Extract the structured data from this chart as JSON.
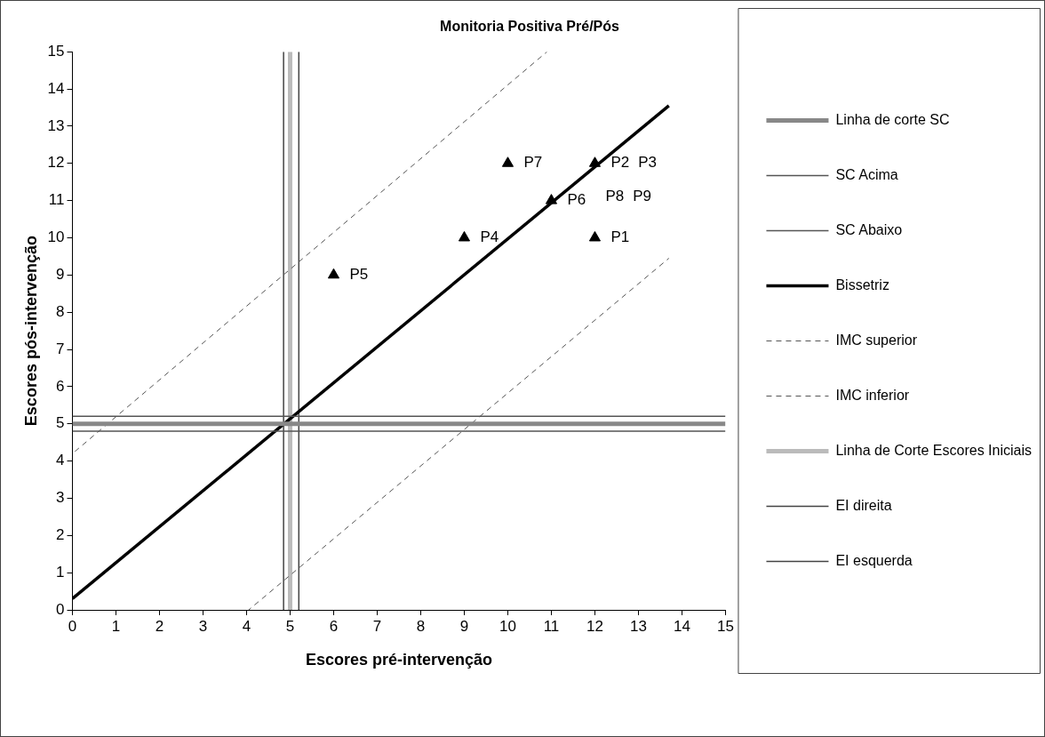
{
  "chart_data": {
    "type": "scatter",
    "title": "Monitoria Positiva Pré/Pós",
    "xlabel": "Escores pré-intervenção",
    "ylabel": "Escores pós-intervenção",
    "xlim": [
      0,
      15
    ],
    "ylim": [
      0,
      15
    ],
    "xticks": [
      0,
      1,
      2,
      3,
      4,
      5,
      6,
      7,
      8,
      9,
      10,
      11,
      12,
      13,
      14,
      15
    ],
    "yticks": [
      0,
      1,
      2,
      3,
      4,
      5,
      6,
      7,
      8,
      9,
      10,
      11,
      12,
      13,
      14,
      15
    ],
    "grid": false,
    "legend": "right",
    "series": [
      {
        "name": "Linha de corte SC",
        "type": "line",
        "color": "#888888",
        "x": [
          0,
          15
        ],
        "values": [
          5,
          5
        ]
      },
      {
        "name": "SC Acima",
        "type": "line",
        "color": "#555555",
        "x": [
          0,
          15
        ],
        "values": [
          5.2,
          5.2
        ]
      },
      {
        "name": "SC Abaixo",
        "type": "line",
        "color": "#555555",
        "x": [
          0,
          15
        ],
        "values": [
          4.8,
          4.8
        ]
      },
      {
        "name": "Bissetriz",
        "type": "line",
        "color": "#000000",
        "x": [
          0,
          13.7
        ],
        "values": [
          0.3,
          13.55
        ]
      },
      {
        "name": "IMC superior",
        "type": "line",
        "color": "#555555",
        "line_style": "dashed",
        "x": [
          0,
          10.9
        ],
        "values": [
          4.2,
          15
        ]
      },
      {
        "name": "IMC inferior",
        "type": "line",
        "color": "#555555",
        "line_style": "dashed",
        "x": [
          4.05,
          13.7
        ],
        "values": [
          0,
          9.45
        ]
      },
      {
        "name": "Linha de Corte Escores Iniciais",
        "type": "line",
        "color": "#bbbbbb",
        "x": [
          5,
          5
        ],
        "values": [
          0,
          15
        ]
      },
      {
        "name": "EI direita",
        "type": "line",
        "color": "#444444",
        "x": [
          5.2,
          5.2
        ],
        "values": [
          0,
          15
        ]
      },
      {
        "name": "EI esquerda",
        "type": "line",
        "color": "#444444",
        "x": [
          4.85,
          4.85
        ],
        "values": [
          0,
          15
        ]
      },
      {
        "type": "scatter",
        "marker": "triangle",
        "color": "#000000",
        "x": [
          12,
          12,
          9,
          6,
          11,
          10
        ],
        "values": [
          10,
          12,
          10,
          9,
          11,
          12
        ]
      }
    ],
    "annotations": [
      {
        "text": "P1",
        "x": 12,
        "y": 10
      },
      {
        "text": "P2",
        "x": 12,
        "y": 12
      },
      "P3",
      {
        "text": "P4",
        "x": 9,
        "y": 10
      },
      {
        "text": "P5",
        "x": 6,
        "y": 9
      },
      {
        "text": "P6",
        "x": 11,
        "y": 11
      },
      {
        "text": "P7",
        "x": 10,
        "y": 12
      },
      {
        "text": "P8",
        "x": 12,
        "y": 12
      },
      "P9"
    ]
  }
}
